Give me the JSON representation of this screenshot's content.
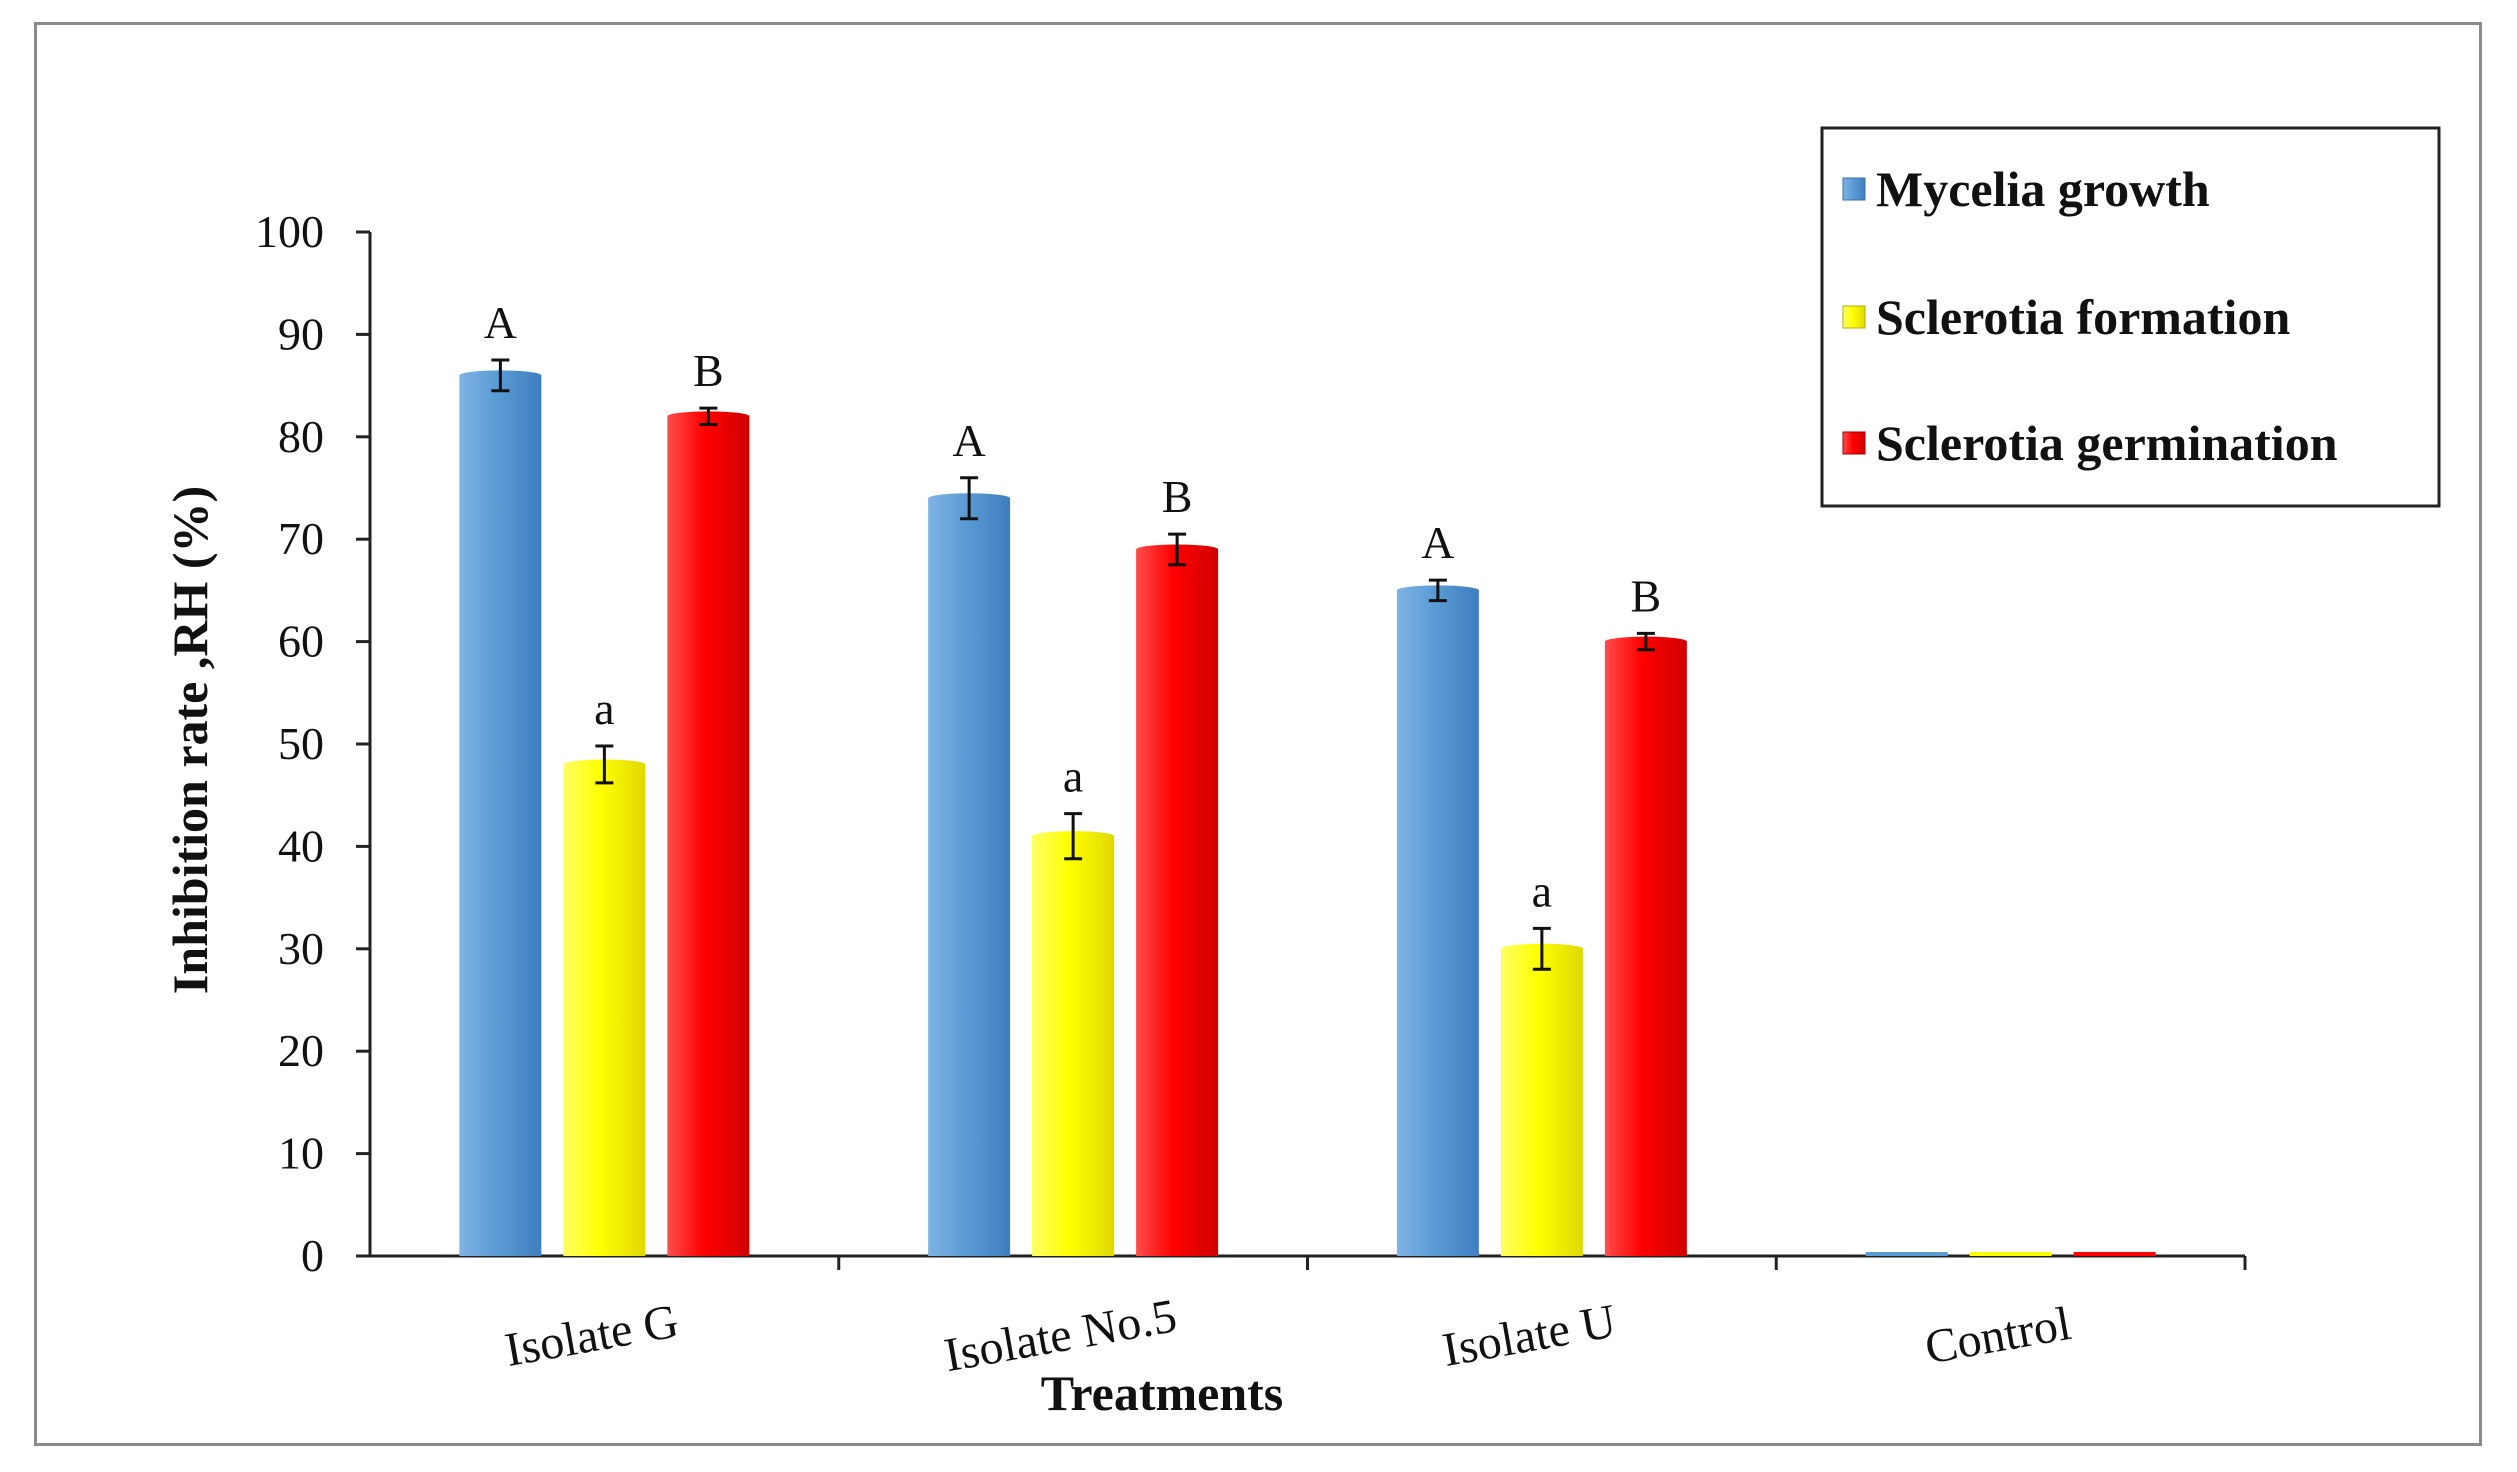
{
  "chart_data": {
    "type": "bar",
    "categories": [
      "Isolate G",
      "Isolate No.5",
      "Isolate U",
      "Control"
    ],
    "series": [
      {
        "name": "Mycelia growth",
        "values": [
          86,
          74,
          65,
          0
        ],
        "errors": [
          1.5,
          2.0,
          1.0,
          0
        ],
        "labels": [
          "A",
          "A",
          "A",
          ""
        ],
        "color": "#5b9bd5"
      },
      {
        "name": "Sclerotia formation",
        "values": [
          48,
          41,
          30,
          0
        ],
        "errors": [
          1.8,
          2.2,
          2.0,
          0
        ],
        "labels": [
          "a",
          "a",
          "a",
          ""
        ],
        "color": "#ffff00"
      },
      {
        "name": "Sclerotia germination",
        "values": [
          82,
          69,
          60,
          0
        ],
        "errors": [
          0.8,
          1.5,
          0.8,
          0
        ],
        "labels": [
          "B",
          "B",
          "B",
          ""
        ],
        "color": "#ff0000"
      }
    ],
    "xlabel": "Treatments",
    "ylabel": "Inhibition rate ,RH (%)",
    "ylim": [
      0,
      100
    ],
    "yticks": [
      "0",
      "10",
      "20",
      "30",
      "40",
      "50",
      "60",
      "70",
      "80",
      "90",
      "100"
    ],
    "grid": false,
    "legend_position": "top-right"
  }
}
